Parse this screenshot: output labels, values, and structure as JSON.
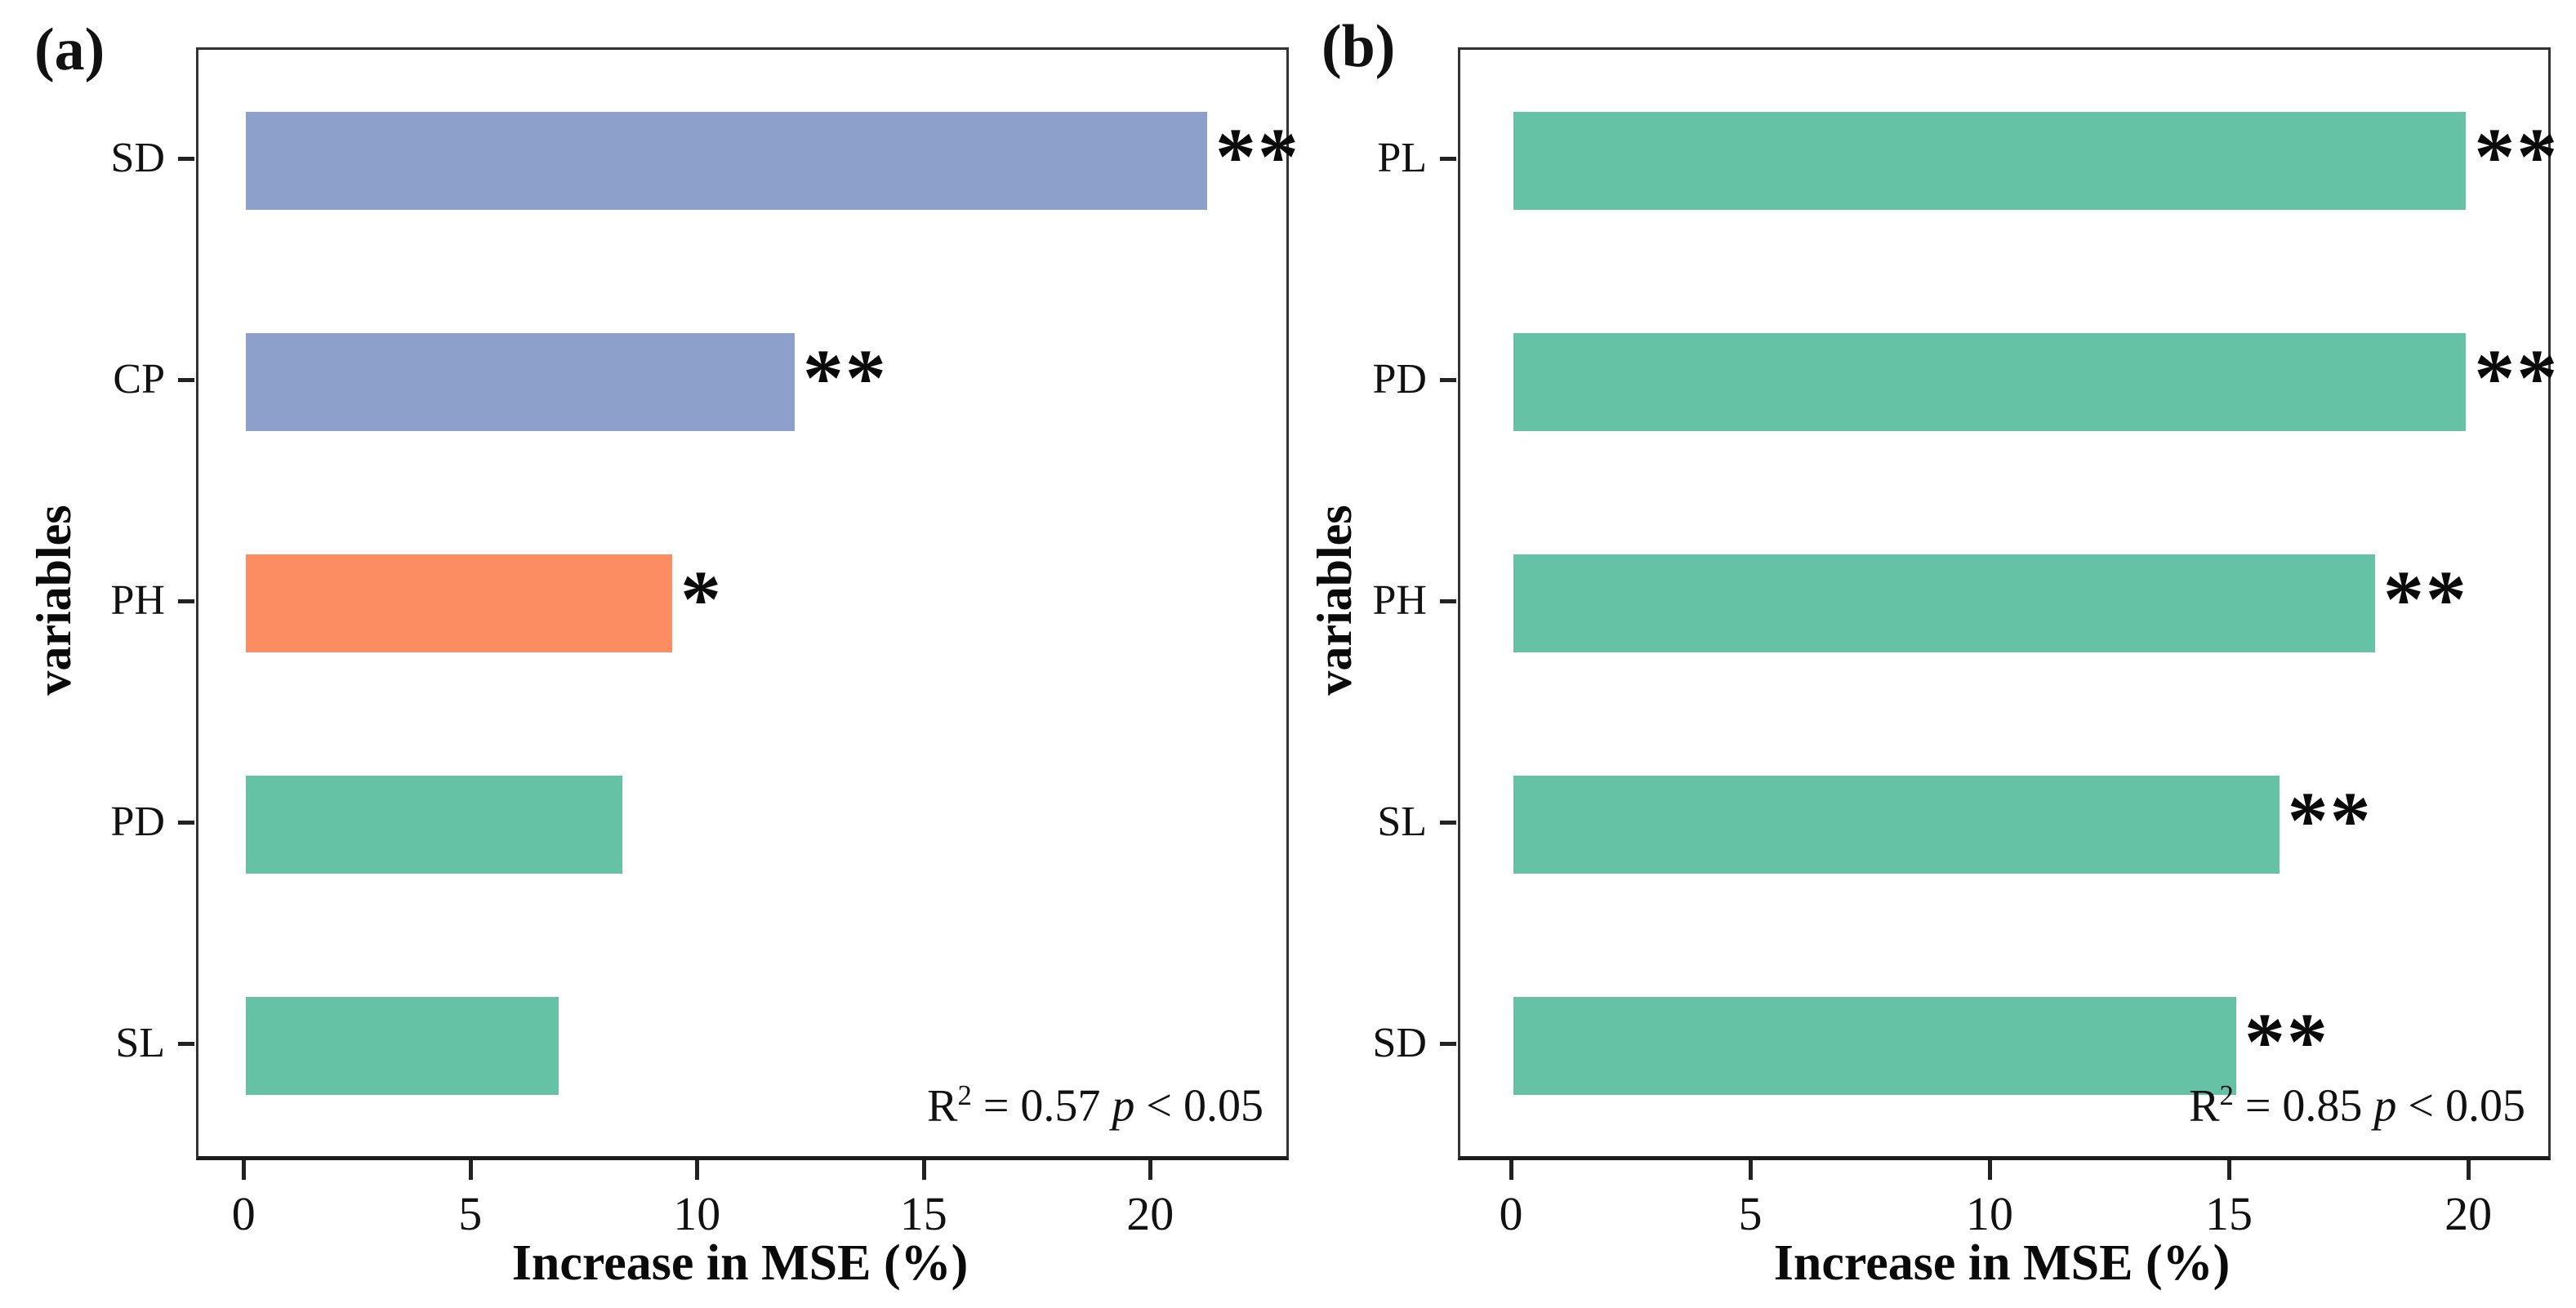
{
  "figure": {
    "background": "#ffffff",
    "axis_color": "#222222",
    "text_color": "#111111"
  },
  "chart_data": [
    {
      "type": "bar",
      "panel_label": "(a)",
      "orientation": "horizontal",
      "title": "",
      "xlabel": "Increase in MSE (%)",
      "ylabel": "variables",
      "categories": [
        "SD",
        "CP",
        "PH",
        "PD",
        "SL"
      ],
      "values": [
        21.2,
        12.1,
        9.4,
        8.3,
        6.9
      ],
      "bar_colors": [
        "#8da0cb",
        "#8da0cb",
        "#fc8d62",
        "#66c2a5",
        "#66c2a5"
      ],
      "significance": [
        "**",
        "**",
        "*",
        "",
        ""
      ],
      "xticks": [
        0,
        5,
        10,
        15,
        20
      ],
      "xlim": [
        -1.05,
        22.95
      ],
      "grid": "off",
      "legend": "none",
      "annotation": {
        "r_base": "R",
        "r_sup": "2",
        "r_rest": " = 0.57 ",
        "p_italic": "p",
        "p_rest": " < 0.05"
      }
    },
    {
      "type": "bar",
      "panel_label": "(b)",
      "orientation": "horizontal",
      "title": "",
      "xlabel": "Increase in MSE (%)",
      "ylabel": "variables",
      "categories": [
        "PL",
        "PD",
        "PH",
        "SL",
        "SD"
      ],
      "values": [
        19.9,
        19.9,
        18.0,
        16.0,
        15.1
      ],
      "bar_colors": [
        "#66c2a5",
        "#66c2a5",
        "#66c2a5",
        "#66c2a5",
        "#66c2a5"
      ],
      "significance": [
        "**",
        "**",
        "**",
        "**",
        "**"
      ],
      "xticks": [
        0,
        5,
        10,
        15,
        20
      ],
      "xlim": [
        -1.11,
        21.62
      ],
      "grid": "off",
      "legend": "none",
      "annotation": {
        "r_base": "R",
        "r_sup": "2",
        "r_rest": " = 0.85 ",
        "p_italic": "p",
        "p_rest": " < 0.05"
      }
    }
  ]
}
